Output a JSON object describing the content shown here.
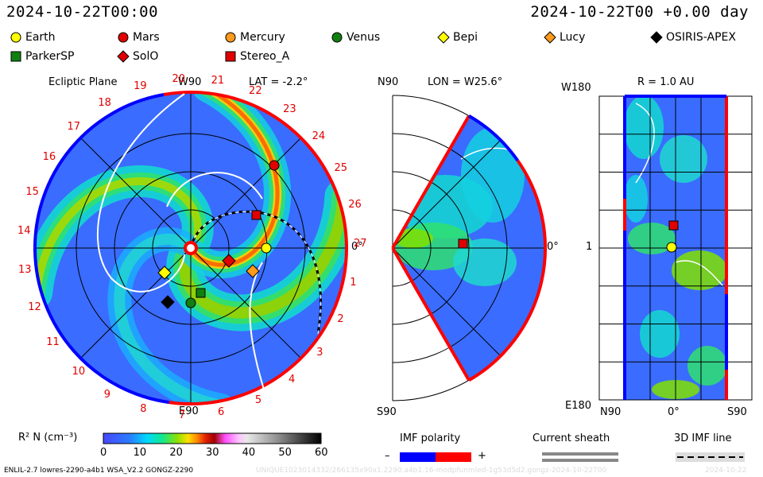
{
  "header": {
    "left_time": "2024-10-22T00:00",
    "right_time": "2024-10-22T00 +0.00 day"
  },
  "legend": [
    {
      "name": "Earth",
      "shape": "circle",
      "color": "#ffff00"
    },
    {
      "name": "Mars",
      "shape": "circle",
      "color": "#e00000"
    },
    {
      "name": "Mercury",
      "shape": "circle",
      "color": "#ff9a1a"
    },
    {
      "name": "Venus",
      "shape": "circle",
      "color": "#108010"
    },
    {
      "name": "Bepi",
      "shape": "diamond",
      "color": "#ffff00"
    },
    {
      "name": "Lucy",
      "shape": "diamond",
      "color": "#ff9a1a"
    },
    {
      "name": "OSIRIS-APEX",
      "shape": "diamond",
      "color": "#000000"
    },
    {
      "name": "ParkerSP",
      "shape": "square",
      "color": "#108010"
    },
    {
      "name": "SolO",
      "shape": "diamond",
      "color": "#e00000"
    },
    {
      "name": "Stereo_A",
      "shape": "square",
      "color": "#e00000"
    }
  ],
  "ecliptic": {
    "title": "Ecliptic Plane",
    "lat_label": "LAT = -2.2°",
    "top_label": "W90",
    "bottom_label": "E90",
    "right_label": "0°",
    "day_labels": [
      "1",
      "2",
      "3",
      "4",
      "5",
      "6",
      "7",
      "8",
      "9",
      "10",
      "11",
      "12",
      "13",
      "14",
      "15",
      "16",
      "17",
      "18",
      "19",
      "20",
      "21",
      "22",
      "23",
      "24",
      "25",
      "26",
      "27"
    ]
  },
  "meridional": {
    "lon_label": "LON = W25.6°",
    "top_label": "N90",
    "bottom_label": "S90",
    "right_label": "0°"
  },
  "latlon": {
    "r_label": "R = 1.0 AU",
    "top_left": "W180",
    "bottom_left": "E180",
    "mid_left": "1",
    "x_labels": [
      "N90",
      "0°",
      "S90"
    ]
  },
  "colorbar": {
    "label": "R² N (cm⁻³)",
    "ticks": [
      "0",
      "10",
      "20",
      "30",
      "40",
      "50",
      "60"
    ]
  },
  "imf": {
    "polarity_label": "IMF polarity",
    "minus": "–",
    "plus": "+",
    "sheath_label": "Current sheath",
    "line_label": "3D IMF line"
  },
  "footer": {
    "model": "ENLIL-2.7 lowres-2290-a4b1 WSA_V2.2 GONGZ-2290",
    "run": "UNIQUE1023014332/266135x90x1.2290.a4b1.16-modpfunmled-1g53d5d2.gongz-2024-10-22T00",
    "date": "2024-10-22"
  },
  "colors": {
    "positive": "#ff0000",
    "negative": "#0000ff",
    "tick_red": "#e00000"
  }
}
